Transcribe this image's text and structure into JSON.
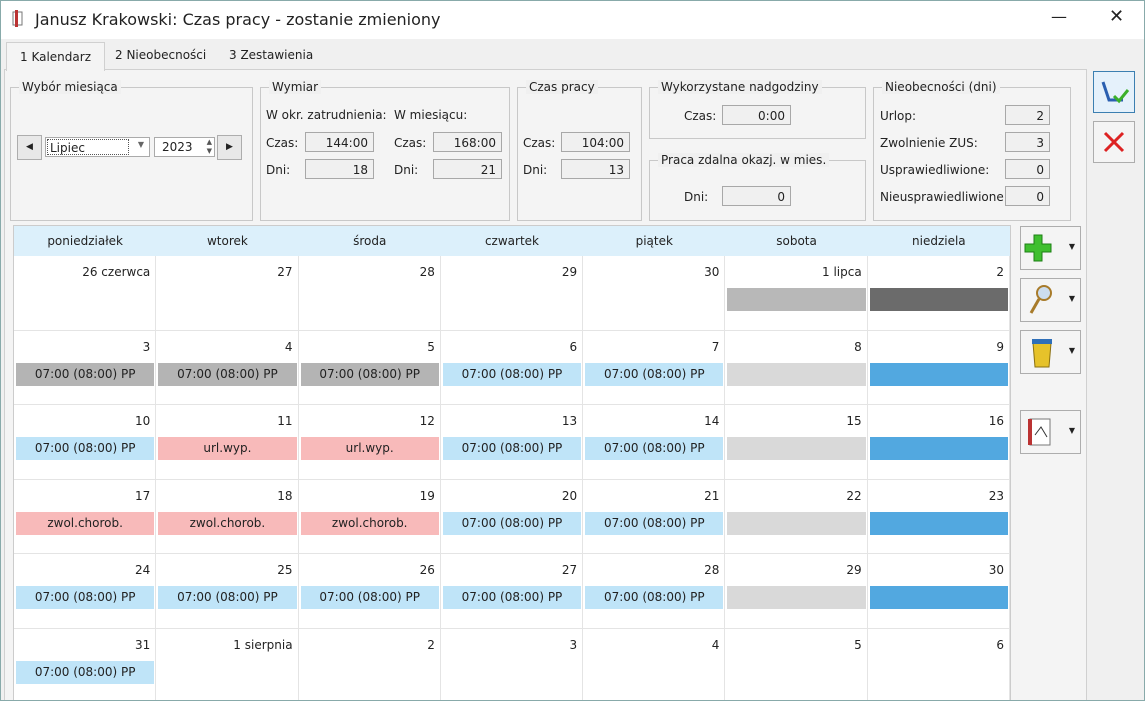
{
  "window": {
    "title": "Janusz Krakowski: Czas pracy - zostanie zmieniony"
  },
  "tabs": [
    "1 Kalendarz",
    "2 Nieobecności",
    "3 Zestawienia"
  ],
  "month_select": {
    "title": "Wybór miesiąca",
    "month": "Lipiec",
    "year": "2023"
  },
  "wymiar": {
    "title": "Wymiar",
    "col1": "W okr. zatrudnienia:",
    "col2": "W miesiącu:",
    "czas_label": "Czas:",
    "dni_label": "Dni:",
    "okr_czas": "144:00",
    "okr_dni": 18,
    "mies_czas": "168:00",
    "mies_dni": 21
  },
  "czas_pracy": {
    "title": "Czas pracy",
    "czas_label": "Czas:",
    "czas": "104:00",
    "dni_label": "Dni:",
    "dni": 13
  },
  "nadgodziny": {
    "title": "Wykorzystane nadgodziny",
    "czas_label": "Czas:",
    "czas": "0:00"
  },
  "praca_zdalna": {
    "title": "Praca zdalna okazj. w mies.",
    "dni_label": "Dni:",
    "dni": 0
  },
  "nieobecnosci": {
    "title": "Nieobecności (dni)",
    "rows": [
      {
        "label": "Urlop:",
        "value": 2
      },
      {
        "label": "Zwolnienie ZUS:",
        "value": 3
      },
      {
        "label": "Usprawiedliwione:",
        "value": 0
      },
      {
        "label": "Nieusprawiedliwione:",
        "value": 0
      }
    ]
  },
  "calendar": {
    "weekdays": [
      "poniedziałek",
      "wtorek",
      "środa",
      "czwartek",
      "piątek",
      "sobota",
      "niedziela"
    ],
    "weeks": [
      [
        {
          "day": "26 czerwca"
        },
        {
          "day": 27
        },
        {
          "day": 28
        },
        {
          "day": 29
        },
        {
          "day": 30
        },
        {
          "day": "1 lipca",
          "color": "#b8b8b8"
        },
        {
          "day": 2,
          "color": "#6b6b6b"
        }
      ],
      [
        {
          "day": 3,
          "entry": "07:00 (08:00) PP",
          "color": "#b4b4b4"
        },
        {
          "day": 4,
          "entry": "07:00 (08:00) PP",
          "color": "#b4b4b4"
        },
        {
          "day": 5,
          "entry": "07:00 (08:00) PP",
          "color": "#b4b4b4"
        },
        {
          "day": 6,
          "entry": "07:00 (08:00) PP",
          "color": "#bfe4f8"
        },
        {
          "day": 7,
          "entry": "07:00 (08:00) PP",
          "color": "#bfe4f8"
        },
        {
          "day": 8,
          "color": "#d9d9d9"
        },
        {
          "day": 9,
          "color": "#52a8e0"
        }
      ],
      [
        {
          "day": 10,
          "entry": "07:00 (08:00) PP",
          "color": "#bfe4f8"
        },
        {
          "day": 11,
          "entry": "url.wyp.",
          "color": "#f8baba"
        },
        {
          "day": 12,
          "entry": "url.wyp.",
          "color": "#f8baba"
        },
        {
          "day": 13,
          "entry": "07:00 (08:00) PP",
          "color": "#bfe4f8"
        },
        {
          "day": 14,
          "entry": "07:00 (08:00) PP",
          "color": "#bfe4f8"
        },
        {
          "day": 15,
          "color": "#d9d9d9"
        },
        {
          "day": 16,
          "color": "#52a8e0"
        }
      ],
      [
        {
          "day": 17,
          "entry": "zwol.chorob.",
          "color": "#f8baba"
        },
        {
          "day": 18,
          "entry": "zwol.chorob.",
          "color": "#f8baba"
        },
        {
          "day": 19,
          "entry": "zwol.chorob.",
          "color": "#f8baba"
        },
        {
          "day": 20,
          "entry": "07:00 (08:00) PP",
          "color": "#bfe4f8"
        },
        {
          "day": 21,
          "entry": "07:00 (08:00) PP",
          "color": "#bfe4f8"
        },
        {
          "day": 22,
          "color": "#d9d9d9"
        },
        {
          "day": 23,
          "color": "#52a8e0"
        }
      ],
      [
        {
          "day": 24,
          "entry": "07:00 (08:00) PP",
          "color": "#bfe4f8"
        },
        {
          "day": 25,
          "entry": "07:00 (08:00) PP",
          "color": "#bfe4f8"
        },
        {
          "day": 26,
          "entry": "07:00 (08:00) PP",
          "color": "#bfe4f8"
        },
        {
          "day": 27,
          "entry": "07:00 (08:00) PP",
          "color": "#bfe4f8"
        },
        {
          "day": 28,
          "entry": "07:00 (08:00) PP",
          "color": "#bfe4f8"
        },
        {
          "day": 29,
          "color": "#d9d9d9"
        },
        {
          "day": 30,
          "color": "#52a8e0"
        }
      ],
      [
        {
          "day": 31,
          "entry": "07:00 (08:00) PP",
          "color": "#bfe4f8"
        },
        {
          "day": "1 sierpnia"
        },
        {
          "day": 2
        },
        {
          "day": 3
        },
        {
          "day": 4
        },
        {
          "day": 5
        },
        {
          "day": 6
        }
      ]
    ]
  }
}
